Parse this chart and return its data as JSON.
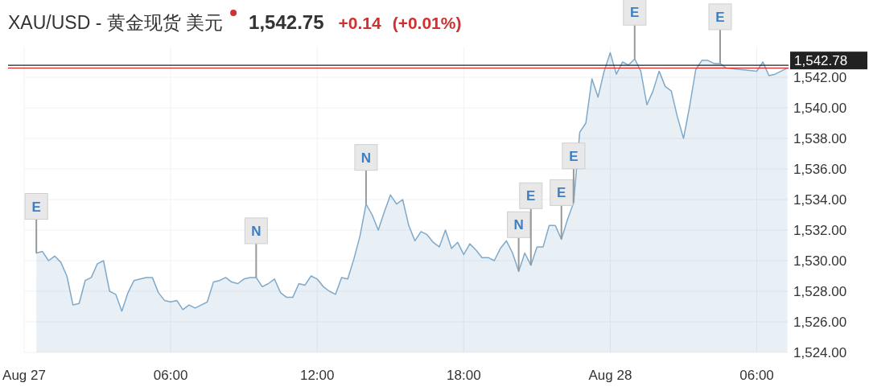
{
  "chart_data": {
    "type": "area",
    "title": "XAU/USD - 黄金现货 美元",
    "subtitle": "1,542.75",
    "x": [
      "--08-27T00:30",
      "--08-27T00:45",
      "--08-27T01:00",
      "--08-27T01:15",
      "--08-27T01:30",
      "--08-27T01:45",
      "--08-27T02:00",
      "--08-27T02:15",
      "--08-27T02:30",
      "--08-27T02:45",
      "--08-27T03:00",
      "--08-27T03:15",
      "--08-27T03:30",
      "--08-27T03:45",
      "--08-27T04:00",
      "--08-27T04:15",
      "--08-27T04:30",
      "--08-27T04:45",
      "--08-27T05:00",
      "--08-27T05:15",
      "--08-27T05:30",
      "--08-27T05:45",
      "--08-27T06:00",
      "--08-27T06:15",
      "--08-27T06:30",
      "--08-27T06:45",
      "--08-27T07:00",
      "--08-27T07:15",
      "--08-27T07:30",
      "--08-27T07:45",
      "--08-27T08:00",
      "--08-27T08:15",
      "--08-27T08:30",
      "--08-27T08:45",
      "--08-27T09:00",
      "--08-27T09:15",
      "--08-27T09:30",
      "--08-27T09:45",
      "--08-27T10:00",
      "--08-27T10:15",
      "--08-27T10:30",
      "--08-27T10:45",
      "--08-27T11:00",
      "--08-27T11:15",
      "--08-27T11:30",
      "--08-27T11:45",
      "--08-27T12:00",
      "--08-27T12:15",
      "--08-27T12:30",
      "--08-27T12:45",
      "--08-27T13:00",
      "--08-27T13:15",
      "--08-27T13:30",
      "--08-27T13:45",
      "--08-27T14:00",
      "--08-27T14:15",
      "--08-27T14:30",
      "--08-27T14:45",
      "--08-27T15:00",
      "--08-27T15:15",
      "--08-27T15:30",
      "--08-27T15:45",
      "--08-27T16:00",
      "--08-27T16:15",
      "--08-27T16:30",
      "--08-27T16:45",
      "--08-27T17:00",
      "--08-27T17:15",
      "--08-27T17:30",
      "--08-27T17:45",
      "--08-27T18:00",
      "--08-27T18:15",
      "--08-27T18:30",
      "--08-27T18:45",
      "--08-27T19:00",
      "--08-27T19:15",
      "--08-27T19:30",
      "--08-27T19:45",
      "--08-27T20:00",
      "--08-27T20:15",
      "--08-27T20:30",
      "--08-27T20:45",
      "--08-27T21:00",
      "--08-27T21:15",
      "--08-27T21:30",
      "--08-27T21:45",
      "--08-27T22:00",
      "--08-27T22:15",
      "--08-27T22:30",
      "--08-27T22:45",
      "--08-27T23:00",
      "--08-27T23:15",
      "--08-27T23:30",
      "--08-27T23:45",
      "--08-28T00:00",
      "--08-28T00:15",
      "--08-28T00:30",
      "--08-28T00:45",
      "--08-28T01:00",
      "--08-28T01:15",
      "--08-28T01:30",
      "--08-28T01:45",
      "--08-28T02:00",
      "--08-28T02:15",
      "--08-28T02:30",
      "--08-28T02:45",
      "--08-28T03:00",
      "--08-28T03:15",
      "--08-28T03:30",
      "--08-28T03:45",
      "--08-28T04:00",
      "--08-28T04:15",
      "--08-28T04:30",
      "--08-28T04:45",
      "--08-28T06:00",
      "--08-28T06:15",
      "--08-28T06:30",
      "--08-28T06:45",
      "--08-28T07:00",
      "--08-28T07:15"
    ],
    "series": [
      {
        "color": "#7fa9c9",
        "values": [
          1530.5,
          1530.6,
          1530.0,
          1530.3,
          1529.9,
          1529.0,
          1527.1,
          1527.2,
          1528.7,
          1528.9,
          1529.8,
          1530.0,
          1528.0,
          1527.8,
          1526.7,
          1527.9,
          1528.7,
          1528.8,
          1528.9,
          1528.9,
          1527.9,
          1527.4,
          1527.3,
          1527.4,
          1526.8,
          1527.1,
          1526.9,
          1527.1,
          1527.3,
          1528.6,
          1528.7,
          1528.9,
          1528.6,
          1528.5,
          1528.8,
          1528.9,
          1528.9,
          1528.3,
          1528.5,
          1528.8,
          1527.9,
          1527.6,
          1527.6,
          1528.5,
          1528.4,
          1529.0,
          1528.8,
          1528.3,
          1528.0,
          1527.8,
          1528.9,
          1528.8,
          1530.1,
          1531.6,
          1533.7,
          1533.0,
          1532.0,
          1533.2,
          1534.3,
          1533.7,
          1534.0,
          1532.3,
          1531.3,
          1531.9,
          1531.7,
          1531.2,
          1530.9,
          1532.0,
          1530.8,
          1531.2,
          1530.4,
          1531.1,
          1530.7,
          1530.2,
          1530.2,
          1530.0,
          1530.8,
          1531.3,
          1530.5,
          1529.3,
          1530.5,
          1529.7,
          1530.9,
          1530.9,
          1532.3,
          1532.3,
          1531.4,
          1532.7,
          1533.8,
          1538.4,
          1539.0,
          1541.9,
          1540.7,
          1542.4,
          1543.6,
          1542.2,
          1543.0,
          1542.8,
          1543.2,
          1542.4,
          1540.2,
          1541.1,
          1542.4,
          1541.4,
          1541.1,
          1539.4,
          1538.0,
          1540.1,
          1542.5,
          1543.1,
          1543.1,
          1542.9,
          1542.9,
          1542.6,
          1542.4,
          1543.0,
          1542.1,
          1542.2,
          1542.4,
          1542.6
        ]
      }
    ],
    "xlim": [
      "--08-27T00:00",
      "--08-28T07:18"
    ],
    "ylim": [
      1524,
      1544
    ],
    "xticks": [
      {
        "value": "--08-27T00:00",
        "label": "Aug 27"
      },
      {
        "value": "--08-27T06:00",
        "label": "06:00"
      },
      {
        "value": "--08-27T12:00",
        "label": "12:00"
      },
      {
        "value": "--08-27T18:00",
        "label": "18:00"
      },
      {
        "value": "--08-28T00:00",
        "label": "Aug 28"
      },
      {
        "value": "--08-28T06:00",
        "label": "06:00"
      }
    ],
    "yticks": [
      {
        "value": 1524,
        "label": "1,524.00"
      },
      {
        "value": 1526,
        "label": "1,526.00"
      },
      {
        "value": 1528,
        "label": "1,528.00"
      },
      {
        "value": 1530,
        "label": "1,530.00"
      },
      {
        "value": 1532,
        "label": "1,532.00"
      },
      {
        "value": 1534,
        "label": "1,534.00"
      },
      {
        "value": 1536,
        "label": "1,536.00"
      },
      {
        "value": 1538,
        "label": "1,538.00"
      },
      {
        "value": 1540,
        "label": "1,540.00"
      },
      {
        "value": 1542,
        "label": "1,542.00"
      }
    ],
    "grid": true,
    "ref_lines": [
      {
        "axis": "y",
        "value": 1542.78,
        "label": "1,542.78",
        "color": "#222222"
      },
      {
        "axis": "y",
        "value": 1542.6,
        "color": "#d0302f"
      }
    ],
    "annotations": [
      "+0.14",
      "(+0.01%)",
      {
        "text": "E",
        "x": "--08-27T00:30",
        "y": 1530.5
      },
      {
        "text": "N",
        "x": "--08-27T09:30",
        "y": 1528.9
      },
      {
        "text": "N",
        "x": "--08-27T14:00",
        "y": 1533.7
      },
      {
        "text": "N",
        "x": "--08-27T20:15",
        "y": 1529.3
      },
      {
        "text": "E",
        "x": "--08-27T20:45",
        "y": 1529.7
      },
      {
        "text": "E",
        "x": "--08-27T22:00",
        "y": 1531.4
      },
      {
        "text": "E",
        "x": "--08-27T22:30",
        "y": 1533.8
      },
      {
        "text": "E",
        "x": "--08-28T01:00",
        "y": 1543.2
      },
      {
        "text": "E",
        "x": "--08-28T04:30",
        "y": 1542.9
      }
    ]
  }
}
